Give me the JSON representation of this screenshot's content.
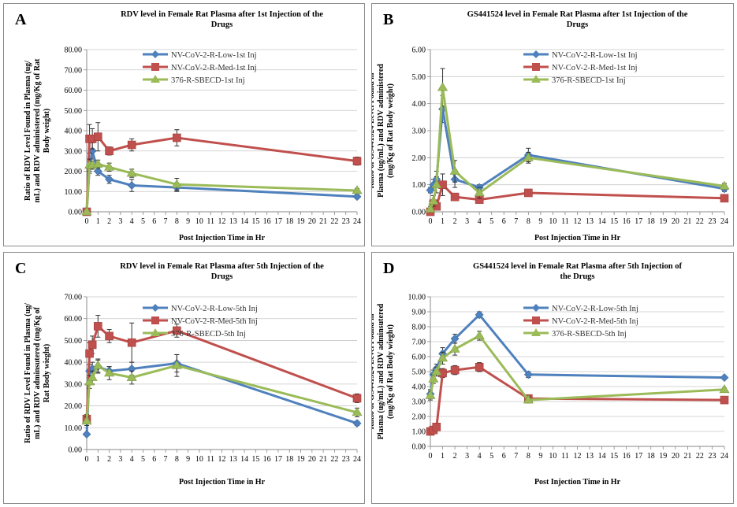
{
  "chart_data": [
    {
      "panel_label": "A",
      "type": "line",
      "title": "RDV level in Female Rat Plasma after 1st Injection of the Drugs",
      "title_lines": [
        "RDV level in Female Rat Plasma after 1st Injection of the",
        "Drugs"
      ],
      "ylabel": "Ratio of RDV Level Found in Plasma (ug/ mL) and RDV administered (mg/Kg of Rat Body weight)",
      "ylabel_lines": [
        "Ratio of RDV Level Found in Plasma (ug/",
        "mL) and RDV administered (mg/Kg of Rat",
        "Body weight)"
      ],
      "xlabel": "Post Injection Time in  Hr",
      "ylim": [
        0,
        80
      ],
      "yticks": [
        "0.00",
        "10.00",
        "20.00",
        "30.00",
        "40.00",
        "50.00",
        "60.00",
        "70.00",
        "80.00"
      ],
      "xlim": [
        0,
        24
      ],
      "xticks": [
        "0",
        "1",
        "2",
        "3",
        "4",
        "5",
        "6",
        "7",
        "8",
        "9",
        "10",
        "11",
        "12",
        "13",
        "14",
        "15",
        "16",
        "17",
        "18",
        "19",
        "20",
        "21",
        "22",
        "23",
        "24"
      ],
      "legend_position": "top-right",
      "series": [
        {
          "name": "NV-CoV-2-R-Low-1st Inj",
          "color": "#4f81bd",
          "x": [
            0,
            0.25,
            0.5,
            1,
            2,
            4,
            8,
            24
          ],
          "values": [
            0,
            22,
            30,
            20,
            16,
            13,
            12,
            7.5
          ],
          "err": [
            0,
            3,
            4,
            2,
            2,
            3,
            2,
            1
          ]
        },
        {
          "name": "NV-CoV-2-R-Med-1st Inj",
          "color": "#c0504d",
          "x": [
            0,
            0.25,
            0.5,
            1,
            2,
            4,
            8,
            24
          ],
          "values": [
            0,
            36,
            36,
            37,
            30,
            33,
            36.5,
            25
          ],
          "err": [
            0,
            7,
            5,
            7,
            2,
            3,
            4,
            2
          ]
        },
        {
          "name": "376-R-SBECD-1st Inj",
          "color": "#9bbb59",
          "x": [
            0,
            0.25,
            0.5,
            1,
            2,
            4,
            8,
            24
          ],
          "values": [
            0,
            23,
            23,
            23.5,
            22,
            19,
            13.5,
            10.5
          ],
          "err": [
            0,
            3,
            2,
            2,
            2,
            2,
            3,
            1
          ]
        }
      ]
    },
    {
      "panel_label": "B",
      "type": "line",
      "title": "GS441524 level in Female Rat Plasma after 1st Injection of the Drugs",
      "title_lines": [
        "GS441524 level in Female Rat Plasma after 1st Injection of the",
        "Drugs"
      ],
      "ylabel": "Ratio of GS441524  Level Found in Plasma (ug/mL) and RDV administered (mg/Kg of Rat Body weight)",
      "ylabel_lines": [
        "Ratio of GS441524  Level Found in",
        "Plasma (ug/mL) and RDV administered",
        "(mg/Kg of Rat Body weight)"
      ],
      "xlabel": "Post Injection Time in  Hr",
      "ylim": [
        0,
        6
      ],
      "yticks": [
        "0.00",
        "1.00",
        "2.00",
        "3.00",
        "4.00",
        "5.00",
        "6.00"
      ],
      "xlim": [
        0,
        24
      ],
      "xticks": [
        "0",
        "1",
        "2",
        "3",
        "4",
        "5",
        "6",
        "7",
        "8",
        "9",
        "10",
        "11",
        "12",
        "13",
        "14",
        "15",
        "16",
        "17",
        "18",
        "19",
        "20",
        "21",
        "22",
        "23",
        "24"
      ],
      "legend_position": "top-right",
      "series": [
        {
          "name": "NV-CoV-2-R-Low-1st Inj",
          "color": "#4f81bd",
          "x": [
            0,
            0.25,
            0.5,
            1,
            2,
            4,
            8,
            24
          ],
          "values": [
            0.8,
            1.0,
            1.2,
            3.8,
            1.2,
            0.9,
            2.1,
            0.85
          ],
          "err": [
            0.1,
            0.2,
            0.3,
            0.5,
            0.3,
            0.1,
            0.25,
            0.1
          ]
        },
        {
          "name": "NV-CoV-2-R-Med-1st Inj",
          "color": "#c0504d",
          "x": [
            0,
            0.25,
            0.5,
            1,
            2,
            4,
            8,
            24
          ],
          "values": [
            0,
            0.3,
            0.2,
            1.0,
            0.55,
            0.45,
            0.7,
            0.5
          ],
          "err": [
            0,
            0.1,
            0.1,
            0.4,
            0.1,
            0.1,
            0.1,
            0.1
          ]
        },
        {
          "name": "376-R-SBECD-1st Inj",
          "color": "#9bbb59",
          "x": [
            0,
            0.25,
            0.5,
            1,
            2,
            4,
            8,
            24
          ],
          "values": [
            0.1,
            0.4,
            1.0,
            4.6,
            1.5,
            0.7,
            2.0,
            0.95
          ],
          "err": [
            0.1,
            0.2,
            0.3,
            0.7,
            0.4,
            0.2,
            0.2,
            0.1
          ]
        }
      ]
    },
    {
      "panel_label": "C",
      "type": "line",
      "title": "RDV level in Female Rat Plasma after 5th Injection of the Drugs",
      "title_lines": [
        "RDV level in Female Rat Plasma after 5th Injection of the",
        "Drugs"
      ],
      "ylabel": "Ratio of RDV Level Found in Plasma (ug/ mL) and RDV adminsutered (mg/Kg of Rat Body wieght)",
      "ylabel_lines": [
        "Ratio of RDV Level Found in Plasma (ug/",
        "mL) and RDV adminsutered (mg/Kg of",
        "Rat Body wieght)"
      ],
      "xlabel": "Post Injection Time in  Hr",
      "ylim": [
        0,
        70
      ],
      "yticks": [
        "0.00",
        "10.00",
        "20.00",
        "30.00",
        "40.00",
        "50.00",
        "60.00",
        "70.00"
      ],
      "xlim": [
        0,
        24
      ],
      "xticks": [
        "0",
        "1",
        "2",
        "3",
        "4",
        "5",
        "6",
        "7",
        "8",
        "9",
        "10",
        "11",
        "12",
        "13",
        "14",
        "15",
        "16",
        "17",
        "18",
        "19",
        "20",
        "21",
        "22",
        "23",
        "24"
      ],
      "legend_position": "top-right",
      "series": [
        {
          "name": "NV-CoV-2-R-Low-5th Inj",
          "color": "#4f81bd",
          "x": [
            0,
            0.25,
            0.5,
            1,
            2,
            4,
            8,
            24
          ],
          "values": [
            7,
            36,
            37,
            38,
            36,
            37,
            39.5,
            12
          ],
          "err": [
            0,
            3,
            3,
            3,
            2,
            3,
            4,
            1
          ]
        },
        {
          "name": "NV-CoV-2-R-Med-5th Inj",
          "color": "#c0504d",
          "x": [
            0,
            0.25,
            0.5,
            1,
            2,
            4,
            8,
            24
          ],
          "values": [
            14,
            44,
            48,
            56.5,
            52,
            49,
            54.5,
            23.5
          ],
          "err": [
            2,
            5,
            4,
            5,
            3,
            9,
            3,
            2
          ]
        },
        {
          "name": "376-R-SBECD-5th Inj",
          "color": "#9bbb59",
          "x": [
            0,
            0.25,
            0.5,
            1,
            2,
            4,
            8,
            24
          ],
          "values": [
            13,
            31,
            33,
            38.5,
            35,
            33,
            38.5,
            17
          ],
          "err": [
            2,
            3,
            3,
            3,
            3,
            3,
            5,
            2
          ]
        }
      ]
    },
    {
      "panel_label": "D",
      "type": "line",
      "title": "GS441524 level in Female Rat Plasma after 5th Injection of the Drugs",
      "title_lines": [
        "GS441524 level in Female Rat Plasma after 5th Injection of",
        "the Drugs"
      ],
      "ylabel": "Ratio of GS441524  Level Found in Plasma (ug/mL) and RDV adminsutered (mg/Kg of Rat Body wieght)",
      "ylabel_lines": [
        "Ratio of GS441524  Level Found in",
        "Plasma (ug/mL) and RDV adminsutered",
        "(mg/Kg of Rat Body wieght)"
      ],
      "xlabel": "Post Injection Time in  Hr",
      "ylim": [
        0,
        10
      ],
      "yticks": [
        "0.00",
        "1.00",
        "2.00",
        "3.00",
        "4.00",
        "5.00",
        "6.00",
        "7.00",
        "8.00",
        "9.00",
        "10.00"
      ],
      "xlim": [
        0,
        24
      ],
      "xticks": [
        "0",
        "1",
        "2",
        "3",
        "4",
        "5",
        "6",
        "7",
        "8",
        "9",
        "10",
        "11",
        "12",
        "13",
        "14",
        "15",
        "16",
        "17",
        "18",
        "19",
        "20",
        "21",
        "22",
        "23",
        "24"
      ],
      "legend_position": "top-right",
      "series": [
        {
          "name": "NV-CoV-2-R-Low-5th Inj",
          "color": "#4f81bd",
          "x": [
            0,
            0.25,
            0.5,
            1,
            2,
            4,
            8,
            24
          ],
          "values": [
            3.5,
            4.8,
            5.2,
            6.2,
            7.2,
            8.8,
            4.8,
            4.6
          ],
          "err": [
            0.3,
            0.3,
            0.3,
            0.4,
            0.3,
            0.2,
            0.2,
            0.1
          ]
        },
        {
          "name": "NV-CoV-2-R-Med-5th Inj",
          "color": "#c0504d",
          "x": [
            0,
            0.25,
            0.5,
            1,
            2,
            4,
            8,
            24
          ],
          "values": [
            1.0,
            1.1,
            1.3,
            4.9,
            5.1,
            5.3,
            3.2,
            3.1
          ],
          "err": [
            0.2,
            0.2,
            0.2,
            0.3,
            0.3,
            0.3,
            0.2,
            0.1
          ]
        },
        {
          "name": "376-R-SBECD-5th Inj",
          "color": "#9bbb59",
          "x": [
            0,
            0.25,
            0.5,
            1,
            2,
            4,
            8,
            24
          ],
          "values": [
            3.4,
            4.5,
            5.0,
            5.9,
            6.5,
            7.4,
            3.1,
            3.8
          ],
          "err": [
            0.3,
            0.3,
            0.3,
            0.4,
            0.4,
            0.3,
            0.2,
            0.1
          ]
        }
      ]
    }
  ]
}
